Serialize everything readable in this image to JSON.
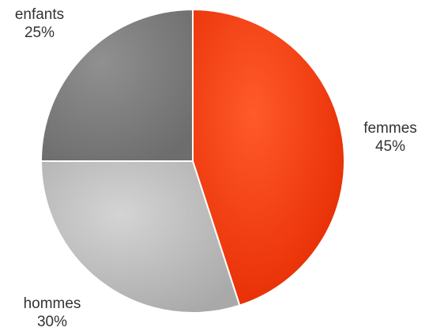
{
  "chart_data": {
    "type": "pie",
    "slices": [
      {
        "name": "femmes",
        "value": 45,
        "value_label": "45%",
        "color": "#ff3b10"
      },
      {
        "name": "hommes",
        "value": 30,
        "value_label": "30%",
        "color": "#bfbfbf"
      },
      {
        "name": "enfants",
        "value": 25,
        "value_label": "25%",
        "color": "#808080"
      }
    ],
    "start": "top",
    "direction": "clockwise"
  }
}
